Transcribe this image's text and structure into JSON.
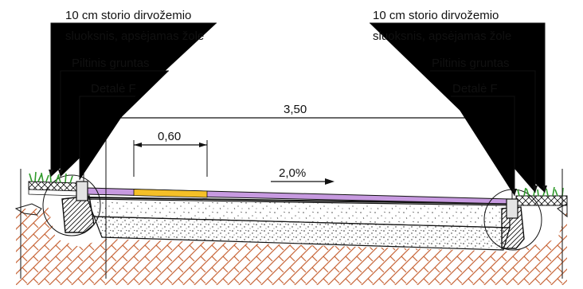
{
  "labels": {
    "topsoil_left_line1": "10 cm storio dirvožemio",
    "topsoil_left_line2": "sluoksnis, apsėjamas žole",
    "fill_left": "Piltinis gruntas",
    "detail_left": "Detalė F",
    "topsoil_right_line1": "10 cm storio dirvožemio",
    "topsoil_right_line2": "sluoksnis, apsėjamas žole",
    "fill_right": "Piltinis gruntas",
    "detail_right": "Detalė F"
  },
  "dimensions": {
    "total_width": "3,50",
    "stripe_width": "0,60",
    "slope": "2,0%"
  },
  "colors": {
    "surface": "#c79ae0",
    "stripe": "#f5c027",
    "grass": "#2f9a2a",
    "hatch": "#c8673a",
    "line": "#111111"
  }
}
